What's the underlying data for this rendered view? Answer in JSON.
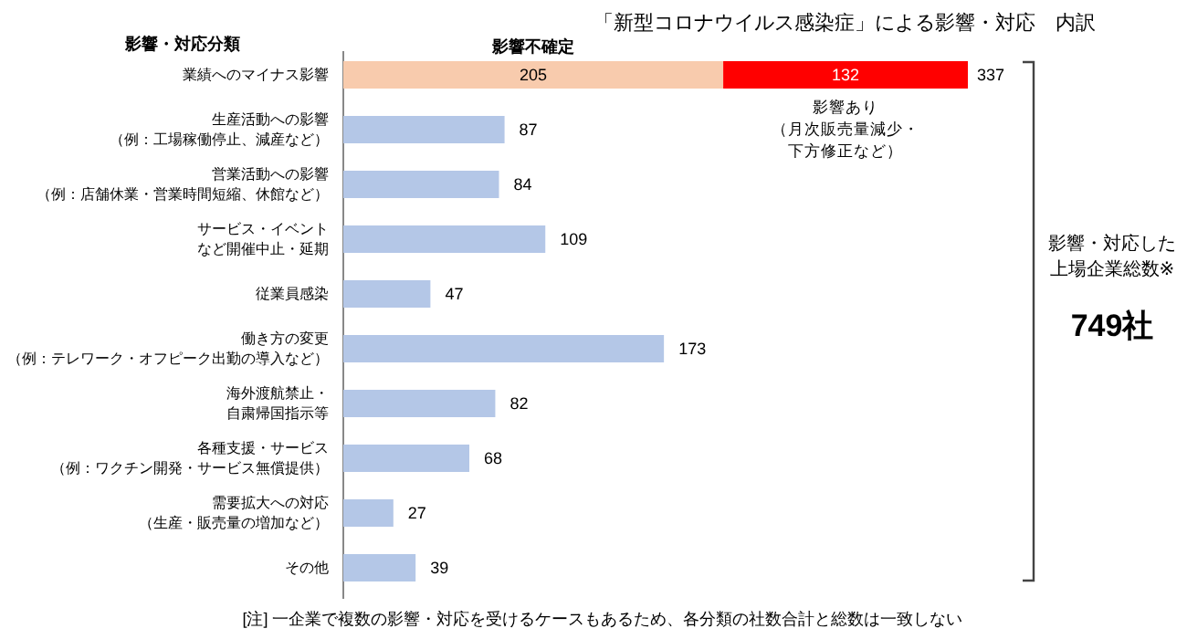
{
  "chart_data": {
    "type": "bar",
    "orientation": "horizontal",
    "stacked": true,
    "title": "「新型コロナウイルス感染症」による影響・対応　内訳",
    "ylabel": "影響・対応分類",
    "categories": [
      "業績へのマイナス影響",
      "生産活動への影響（例：工場稼働停止、減産など）",
      "営業活動への影響（例：店舗休業・営業時間短縮、休館など）",
      "サービス・イベントなど開催中止・延期",
      "従業員感染",
      "働き方の変更（例：テレワーク・オフピーク出勤の導入など）",
      "海外渡航禁止・自粛帰国指示等",
      "各種支援・サービス（例：ワクチン開発・サービス無償提供）",
      "需要拡大への対応（生産・販売量の増加など）",
      "その他"
    ],
    "series": [
      {
        "name": "影響不確定",
        "colors": [
          "#f8cbad",
          "#b4c7e7",
          "#b4c7e7",
          "#b4c7e7",
          "#b4c7e7",
          "#b4c7e7",
          "#b4c7e7",
          "#b4c7e7",
          "#b4c7e7",
          "#b4c7e7"
        ],
        "values": [
          205,
          87,
          84,
          109,
          47,
          173,
          82,
          68,
          27,
          39
        ]
      },
      {
        "name": "影響あり（月次販売量減少・下方修正など）",
        "color": "#ff0000",
        "values": [
          132,
          null,
          null,
          null,
          null,
          null,
          null,
          null,
          null,
          null
        ]
      }
    ],
    "data_labels": true,
    "totals": [
      "337",
      null,
      null,
      null,
      null,
      null,
      null,
      null,
      null,
      null
    ],
    "annotations": [
      "影響・対応した上場企業総数※",
      "749社",
      "[注] 一企業で複数の影響・対応を受けるケースもあるため、各分類の社数合計と総数は一致しない"
    ]
  }
}
